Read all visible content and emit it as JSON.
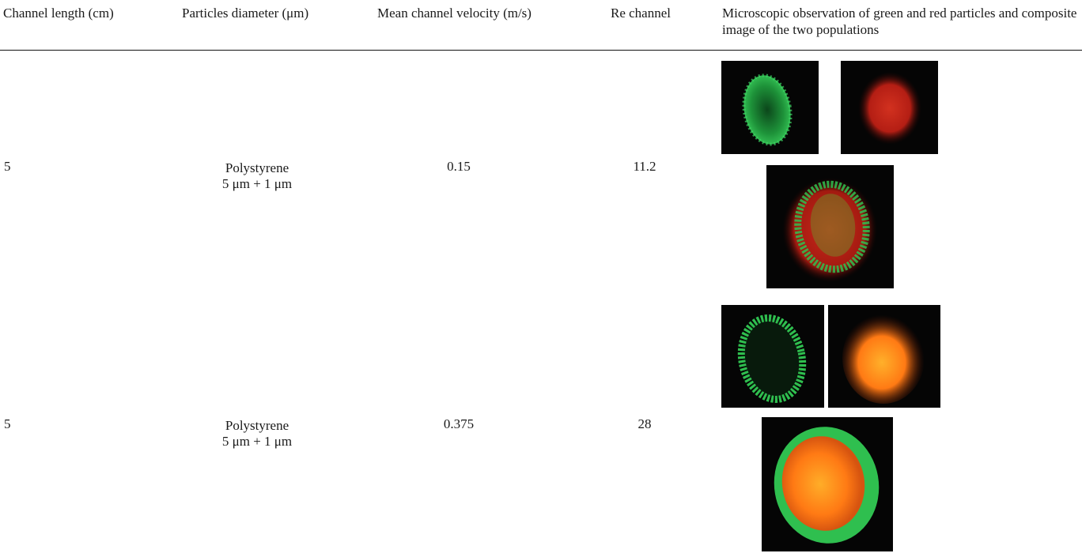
{
  "table": {
    "columns": [
      "Channel length (cm)",
      "Particles diameter (μm)",
      "Mean channel velocity (m/s)",
      "Re channel",
      "Microscopic observation of green and red particles and composite image of the two populations"
    ],
    "rows": [
      {
        "channel_length": "5",
        "material": "Polystyrene",
        "diameter": "5 μm + 1 μm",
        "velocity": "0.15",
        "re": "11.2"
      },
      {
        "channel_length": "5",
        "material": "Polystyrene",
        "diameter": "5 μm + 1 μm",
        "velocity": "0.375",
        "re": "28"
      }
    ]
  },
  "colors": {
    "green": "#2fbf4f",
    "red": "#c8261c",
    "orange": "#ff8a1a",
    "background": "#050505"
  }
}
